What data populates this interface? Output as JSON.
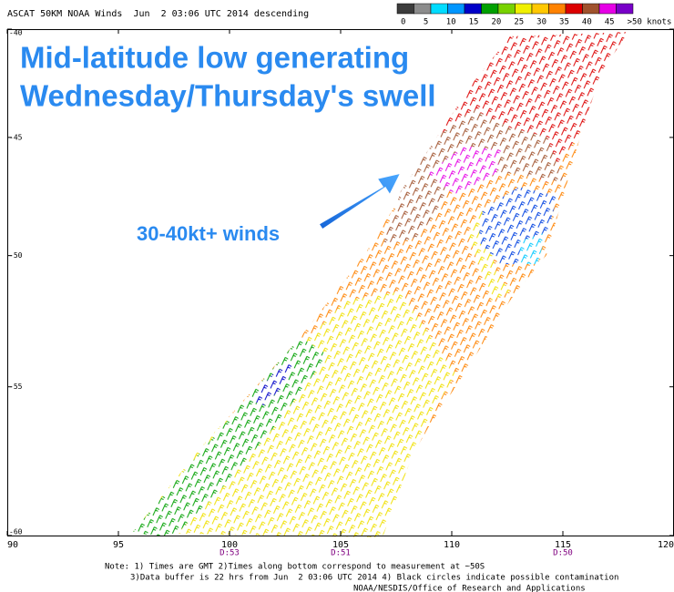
{
  "header": {
    "title": "ASCAT 50KM NOAA Winds  Jun  2 03:06 UTC 2014 descending"
  },
  "legend": {
    "colors": [
      "#3c3c3c",
      "#8c8c8c",
      "#00dcff",
      "#0096ff",
      "#0000c8",
      "#00a000",
      "#78d200",
      "#f0f000",
      "#ffc800",
      "#ff8200",
      "#dc0000",
      "#a0522d",
      "#e600e6",
      "#7800c8"
    ],
    "labels": [
      0,
      5,
      10,
      15,
      20,
      25,
      30,
      35,
      40,
      45,
      ">50 knots"
    ]
  },
  "map": {
    "xlim": [
      90,
      120
    ],
    "ylim": [
      -60,
      -40
    ],
    "xticks": [
      90,
      95,
      100,
      105,
      110,
      115,
      120
    ],
    "yticks": [
      -40,
      -45,
      -50,
      -55,
      -60
    ],
    "time_labels": [
      {
        "value": 100,
        "label": "D:53"
      },
      {
        "value": 105,
        "label": "D:51"
      },
      {
        "value": 115,
        "label": "D:50"
      }
    ]
  },
  "annotations": {
    "headline": [
      "Mid-latitude low generating",
      "Wednesday/Thursday's swell"
    ],
    "arrow_label": "30-40kt+ winds"
  },
  "notes": [
    "Note: 1) Times are GMT 2)Times along bottom correspond to measurement at ~50S",
    "3)Data buffer is 22 hrs from Jun  2 03:06 UTC 2014 4) Black circles indicate possible contamination",
    "NOAA/NESDIS/Office of Research and Applications"
  ]
}
